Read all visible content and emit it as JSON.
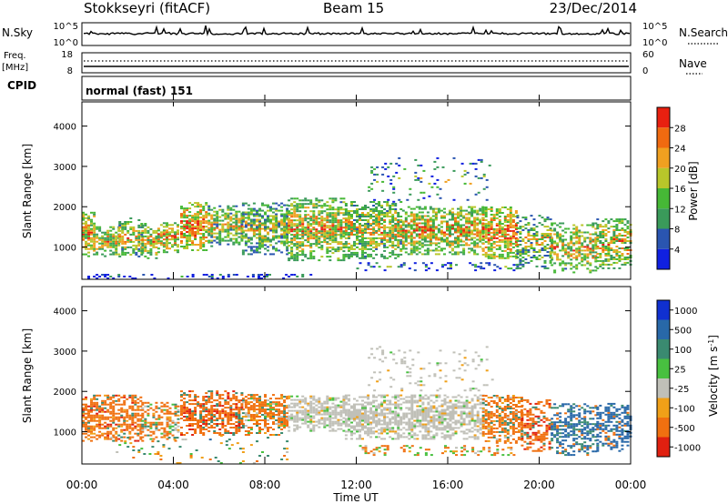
{
  "header": {
    "station": "Stokkseyri (fitACF)",
    "beam": "Beam 15",
    "date": "23/Dec/2014"
  },
  "strip": {
    "nsky_label": "N.Sky",
    "nsky_top": "10^5",
    "nsky_bottom": "10^0",
    "nsearch_label": "N.Search",
    "nsearch_top": "10^5",
    "nsearch_bottom": "10^0",
    "freq_label": "Freq.",
    "freq_unit": "[MHz]",
    "freq_top": "18",
    "freq_bottom": "8",
    "nave_label": "Nave",
    "nave_top": "60",
    "nave_bottom": "0",
    "cpid_label": "CPID",
    "cpid_value": "normal (fast) 151"
  },
  "colors": {
    "power": [
      "#1020e0",
      "#2a55b0",
      "#3a9a5a",
      "#46b836",
      "#b8c62a",
      "#f0a020",
      "#f06a10",
      "#e82010"
    ],
    "velocity": [
      "#1030d0",
      "#2868a8",
      "#3a8a70",
      "#48c040",
      "#c0c0b8",
      "#f0a018",
      "#f07010",
      "#e02010"
    ]
  },
  "chart_data": [
    {
      "type": "heatmap",
      "name": "power",
      "ylabel": "Slant Range [km]",
      "yticks": [
        "1000",
        "2000",
        "3000",
        "4000"
      ],
      "ylim": [
        200,
        4600
      ],
      "colorbar_label": "Power [dB]",
      "colorbar_ticks": [
        "4",
        "8",
        "12",
        "16",
        "20",
        "24",
        "28"
      ],
      "colorbar_range": [
        0,
        32
      ],
      "segments": [
        {
          "t0": 0.0,
          "t1": 0.6,
          "r0": 750,
          "r1": 1900,
          "v": 22,
          "d": 0.9
        },
        {
          "t0": 0.6,
          "t1": 1.6,
          "r0": 750,
          "r1": 1500,
          "v": 20,
          "d": 0.85
        },
        {
          "t0": 1.6,
          "t1": 2.6,
          "r0": 700,
          "r1": 1700,
          "v": 18,
          "d": 0.7
        },
        {
          "t0": 2.6,
          "t1": 3.3,
          "r0": 700,
          "r1": 1600,
          "v": 20,
          "d": 0.75
        },
        {
          "t0": 3.3,
          "t1": 4.2,
          "r0": 850,
          "r1": 1600,
          "v": 22,
          "d": 0.8
        },
        {
          "t0": 4.3,
          "t1": 5.5,
          "r0": 900,
          "r1": 2100,
          "v": 24,
          "d": 0.9
        },
        {
          "t0": 5.5,
          "t1": 7.0,
          "r0": 1000,
          "r1": 2000,
          "v": 18,
          "d": 0.8
        },
        {
          "t0": 7.0,
          "t1": 9.0,
          "r0": 800,
          "r1": 2100,
          "v": 16,
          "d": 0.85
        },
        {
          "t0": 9.0,
          "t1": 11.5,
          "r0": 650,
          "r1": 2200,
          "v": 20,
          "d": 0.85
        },
        {
          "t0": 11.5,
          "t1": 14.0,
          "r0": 700,
          "r1": 2100,
          "v": 19,
          "d": 0.85
        },
        {
          "t0": 14.0,
          "t1": 17.5,
          "r0": 800,
          "r1": 2000,
          "v": 21,
          "d": 0.85
        },
        {
          "t0": 17.5,
          "t1": 19.0,
          "r0": 700,
          "r1": 2000,
          "v": 24,
          "d": 0.85
        },
        {
          "t0": 19.0,
          "t1": 20.5,
          "r0": 450,
          "r1": 1800,
          "v": 16,
          "d": 0.6
        },
        {
          "t0": 20.5,
          "t1": 22.5,
          "r0": 350,
          "r1": 1600,
          "v": 20,
          "d": 0.7
        },
        {
          "t0": 22.5,
          "t1": 24.0,
          "r0": 450,
          "r1": 1700,
          "v": 20,
          "d": 0.7
        },
        {
          "t0": 12.5,
          "t1": 18.0,
          "r0": 2100,
          "r1": 3200,
          "v": 12,
          "d": 0.12
        },
        {
          "t0": 0.0,
          "t1": 10.0,
          "r0": 200,
          "r1": 320,
          "v": 6,
          "d": 0.35
        },
        {
          "t0": 12.0,
          "t1": 19.0,
          "r0": 400,
          "r1": 600,
          "v": 10,
          "d": 0.3
        }
      ]
    },
    {
      "type": "heatmap",
      "name": "velocity",
      "xlabel": "Time UT",
      "xticks": [
        "00:00",
        "04:00",
        "08:00",
        "12:00",
        "16:00",
        "20:00",
        "00:00"
      ],
      "xlim": [
        0,
        24
      ],
      "ylabel": "Slant Range [km]",
      "yticks": [
        "1000",
        "2000",
        "3000",
        "4000"
      ],
      "ylim": [
        200,
        4600
      ],
      "colorbar_label": "Velocity [m s^-1]",
      "colorbar_ticks": [
        "1000",
        "500",
        "100",
        "25",
        "-25",
        "-100",
        "-500",
        "-1000"
      ],
      "segments": [
        {
          "t0": 0.0,
          "t1": 2.6,
          "r0": 750,
          "r1": 1900,
          "v": -300,
          "d": 0.75
        },
        {
          "t0": 2.6,
          "t1": 4.2,
          "r0": 750,
          "r1": 1700,
          "v": -200,
          "d": 0.65
        },
        {
          "t0": 4.3,
          "t1": 7.0,
          "r0": 900,
          "r1": 2000,
          "v": -350,
          "d": 0.8
        },
        {
          "t0": 7.0,
          "t1": 9.0,
          "r0": 900,
          "r1": 1900,
          "v": -200,
          "d": 0.8
        },
        {
          "t0": 9.0,
          "t1": 11.5,
          "r0": 1000,
          "r1": 1900,
          "v": 0,
          "d": 0.8
        },
        {
          "t0": 11.5,
          "t1": 17.5,
          "r0": 800,
          "r1": 1900,
          "v": 0,
          "d": 0.8
        },
        {
          "t0": 17.5,
          "t1": 19.2,
          "r0": 700,
          "r1": 1900,
          "v": -250,
          "d": 0.8
        },
        {
          "t0": 19.2,
          "t1": 20.5,
          "r0": 500,
          "r1": 1800,
          "v": -400,
          "d": 0.6
        },
        {
          "t0": 20.5,
          "t1": 22.5,
          "r0": 400,
          "r1": 1700,
          "v": 400,
          "d": 0.65
        },
        {
          "t0": 22.5,
          "t1": 24.0,
          "r0": 500,
          "r1": 1700,
          "v": 500,
          "d": 0.6
        },
        {
          "t0": 12.5,
          "t1": 18.0,
          "r0": 2000,
          "r1": 3100,
          "v": 0,
          "d": 0.12
        },
        {
          "t0": 1.0,
          "t1": 9.0,
          "r0": 200,
          "r1": 900,
          "v": 60,
          "d": 0.08
        },
        {
          "t0": 12.0,
          "t1": 19.0,
          "r0": 400,
          "r1": 650,
          "v": -150,
          "d": 0.3
        }
      ]
    }
  ]
}
